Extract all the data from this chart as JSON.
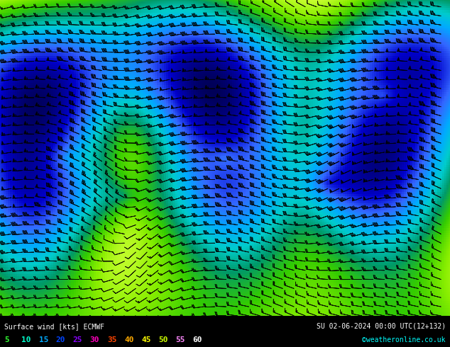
{
  "title": "Surface wind [kts] ECMWF",
  "subtitle": "SU 02-06-2024 00:00 UTC(12+132)",
  "credit": "©weatheronline.co.uk",
  "colorbar_values": [
    5,
    10,
    15,
    20,
    25,
    30,
    35,
    40,
    45,
    50,
    55,
    60
  ],
  "legend_colors": [
    "#33ff33",
    "#00ffcc",
    "#00aaff",
    "#0044ff",
    "#8800ff",
    "#ff00bb",
    "#ff4400",
    "#ffaa00",
    "#ffff00",
    "#ccff00",
    "#ff88ff",
    "#ffffff"
  ],
  "wind_cmap_nodes": [
    [
      0.0,
      "#ffff99"
    ],
    [
      0.12,
      "#ccff33"
    ],
    [
      0.22,
      "#88ee00"
    ],
    [
      0.32,
      "#33cc00"
    ],
    [
      0.42,
      "#009966"
    ],
    [
      0.52,
      "#00cccc"
    ],
    [
      0.62,
      "#00aaff"
    ],
    [
      0.72,
      "#3366ff"
    ],
    [
      0.82,
      "#0000cc"
    ],
    [
      0.9,
      "#000088"
    ],
    [
      1.0,
      "#000033"
    ]
  ],
  "vmin": 0,
  "vmax": 60,
  "figsize": [
    6.34,
    4.9
  ],
  "dpi": 100,
  "bg_color": "#ffffff",
  "bottom_bg": "#000000"
}
